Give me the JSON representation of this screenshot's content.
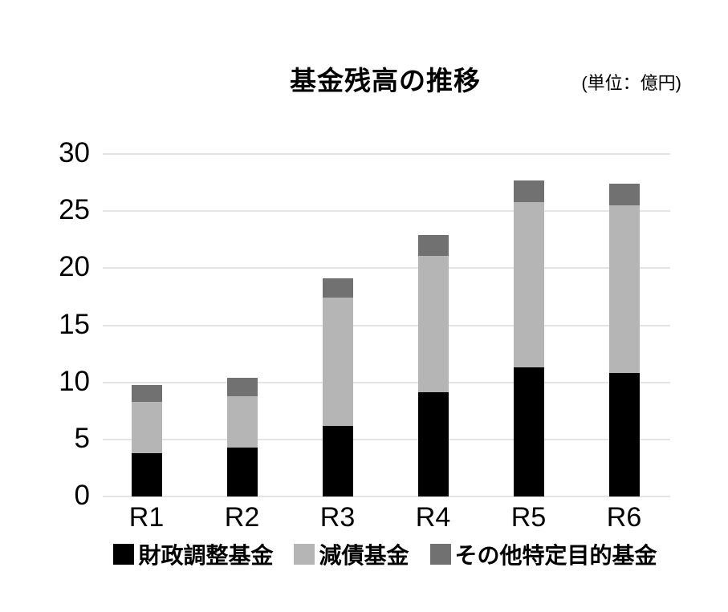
{
  "chart": {
    "title": "基金残高の推移",
    "unit_label": "(単位：億円)",
    "colors": {
      "background": "#ffffff",
      "gridline": "#e4e4e4",
      "text": "#000000"
    }
  },
  "chart_data": {
    "type": "bar",
    "stacked": true,
    "title": "基金残高の推移",
    "unit": "億円",
    "categories": [
      "R1",
      "R2",
      "R3",
      "R4",
      "R5",
      "R6"
    ],
    "series": [
      {
        "name": "財政調整基金",
        "color": "#000000",
        "values": [
          3.8,
          4.3,
          6.2,
          9.1,
          11.3,
          10.8
        ]
      },
      {
        "name": "減債基金",
        "color": "#b5b5b5",
        "values": [
          4.5,
          4.5,
          11.2,
          12.0,
          14.5,
          14.7
        ]
      },
      {
        "name": "その他特定目的基金",
        "color": "#717171",
        "values": [
          1.5,
          1.6,
          1.7,
          1.8,
          1.9,
          1.9
        ]
      }
    ],
    "totals": [
      9.8,
      10.4,
      19.1,
      22.9,
      27.7,
      27.4
    ],
    "ylim": [
      0,
      30
    ],
    "yticks": [
      0,
      5,
      10,
      15,
      20,
      25,
      30
    ],
    "xlabel": "",
    "ylabel": "",
    "grid": true,
    "legend_position": "bottom"
  }
}
